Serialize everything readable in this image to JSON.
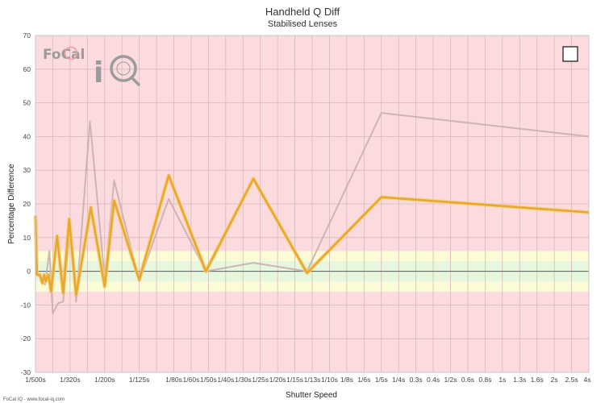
{
  "chart_data": {
    "type": "line",
    "title": "Handheld Q Diff",
    "subtitle": "Stabilised Lenses",
    "xlabel": "Shutter Speed",
    "ylabel": "Percentage Difference",
    "ylim": [
      -30,
      70
    ],
    "yticks": [
      -30,
      -20,
      -10,
      0,
      10,
      20,
      30,
      40,
      50,
      60,
      70
    ],
    "x_tick_labels": [
      "1/500s",
      "1/320s",
      "1/200s",
      "1/125s",
      "1/80s",
      "1/60s",
      "1/50s",
      "1/40s",
      "1/30s",
      "1/25s",
      "1/20s",
      "1/15s",
      "1/13s",
      "1/10s",
      "1/8s",
      "1/6s",
      "1/5s",
      "1/4s",
      "0.3s",
      "0.4s",
      "1/2s",
      "0.6s",
      "0.8s",
      "1s",
      "1.3s",
      "1.6s",
      "2s",
      "2.5s",
      "4s"
    ],
    "x_tick_stops": [
      0,
      2,
      4,
      6,
      8,
      9,
      10,
      11,
      12,
      13,
      14,
      15,
      16,
      17,
      18,
      19,
      20,
      21,
      22,
      23,
      24,
      25,
      26,
      27,
      28,
      29,
      30,
      31,
      32
    ],
    "grid": true,
    "legend": "top-right",
    "bands": [
      {
        "from": 6,
        "to": 70,
        "color": "#fcdbdf"
      },
      {
        "from": -30,
        "to": -6,
        "color": "#fcdbdf"
      },
      {
        "from": 3,
        "to": 6,
        "color": "#fbfbd6"
      },
      {
        "from": -6,
        "to": -3,
        "color": "#fbfbd6"
      },
      {
        "from": -3,
        "to": 3,
        "color": "#e6f7de"
      }
    ],
    "series": [
      {
        "color": "#e8a82c",
        "points": [
          [
            0,
            16.5
          ],
          [
            0.08,
            -1
          ],
          [
            0.25,
            -1
          ],
          [
            0.4,
            -3.5
          ],
          [
            0.5,
            -1
          ],
          [
            0.6,
            -3
          ],
          [
            0.75,
            -1
          ],
          [
            0.9,
            -6
          ],
          [
            1.25,
            10.5
          ],
          [
            1.6,
            -6.5
          ],
          [
            1.95,
            15.5
          ],
          [
            2.35,
            -7
          ],
          [
            3.2,
            19
          ],
          [
            4.0,
            -4.5
          ],
          [
            4.55,
            21
          ],
          [
            6.0,
            -2.5
          ],
          [
            7.7,
            28.5
          ],
          [
            9.85,
            0
          ],
          [
            12.6,
            27.5
          ],
          [
            15.7,
            -0.5
          ],
          [
            20.0,
            22
          ],
          [
            32.0,
            17.5
          ]
        ]
      },
      {
        "color": "#c9aab0",
        "points": [
          [
            0,
            15
          ],
          [
            0.08,
            -1
          ],
          [
            0.3,
            -2
          ],
          [
            0.55,
            -4
          ],
          [
            0.8,
            6
          ],
          [
            1.0,
            -12.5
          ],
          [
            1.3,
            -9.5
          ],
          [
            1.6,
            -9
          ],
          [
            2.0,
            12
          ],
          [
            2.35,
            -9
          ],
          [
            3.15,
            44.5
          ],
          [
            4.0,
            -2
          ],
          [
            4.55,
            27
          ],
          [
            6.0,
            -3
          ],
          [
            7.7,
            21.5
          ],
          [
            9.85,
            0
          ],
          [
            12.6,
            2.5
          ],
          [
            15.7,
            0
          ],
          [
            20.0,
            47
          ],
          [
            32.0,
            40
          ]
        ]
      }
    ],
    "legend_items": [
      {
        "symbol": "checkbox"
      }
    ],
    "credit": "FoCal IQ - www.focal-iq.com"
  },
  "logo": {
    "text": "FoCal iQ",
    "color": "#9b9b9b"
  }
}
